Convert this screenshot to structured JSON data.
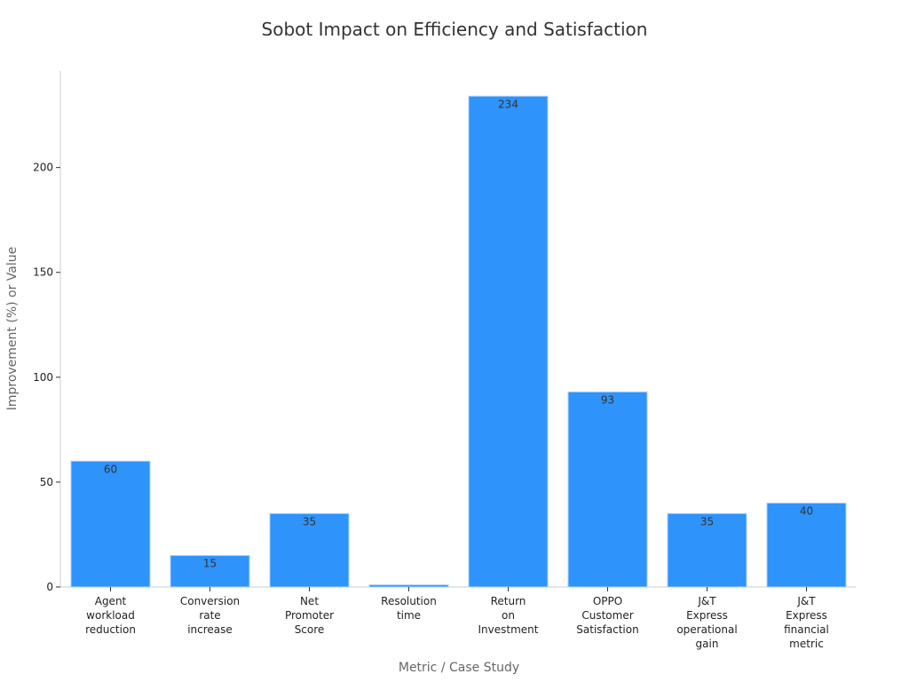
{
  "chart_data": {
    "type": "bar",
    "title": "Sobot Impact on Efficiency and Satisfaction",
    "xlabel": "Metric / Case Study",
    "ylabel": "Improvement (%) or Value",
    "categories": [
      [
        "Agent",
        "workload",
        "reduction"
      ],
      [
        "Conversion",
        "rate",
        "increase"
      ],
      [
        "Net",
        "Promoter",
        "Score"
      ],
      [
        "Resolution",
        "time"
      ],
      [
        "Return",
        "on",
        "Investment"
      ],
      [
        "OPPO",
        "Customer",
        "Satisfaction"
      ],
      [
        "J&T",
        "Express",
        "operational",
        "gain"
      ],
      [
        "J&T",
        "Express",
        "financial",
        "metric"
      ]
    ],
    "values": [
      60,
      15,
      35,
      1,
      234,
      93,
      35,
      40
    ],
    "data_labels": [
      "60",
      "15",
      "35",
      "",
      "234",
      "93",
      "35",
      "40"
    ],
    "yticks": [
      0,
      50,
      100,
      150,
      200
    ],
    "ylim": [
      0,
      246
    ],
    "grid": false,
    "bar_color": "#2e93fa",
    "bar_edge_color": "#a9d1fb"
  }
}
